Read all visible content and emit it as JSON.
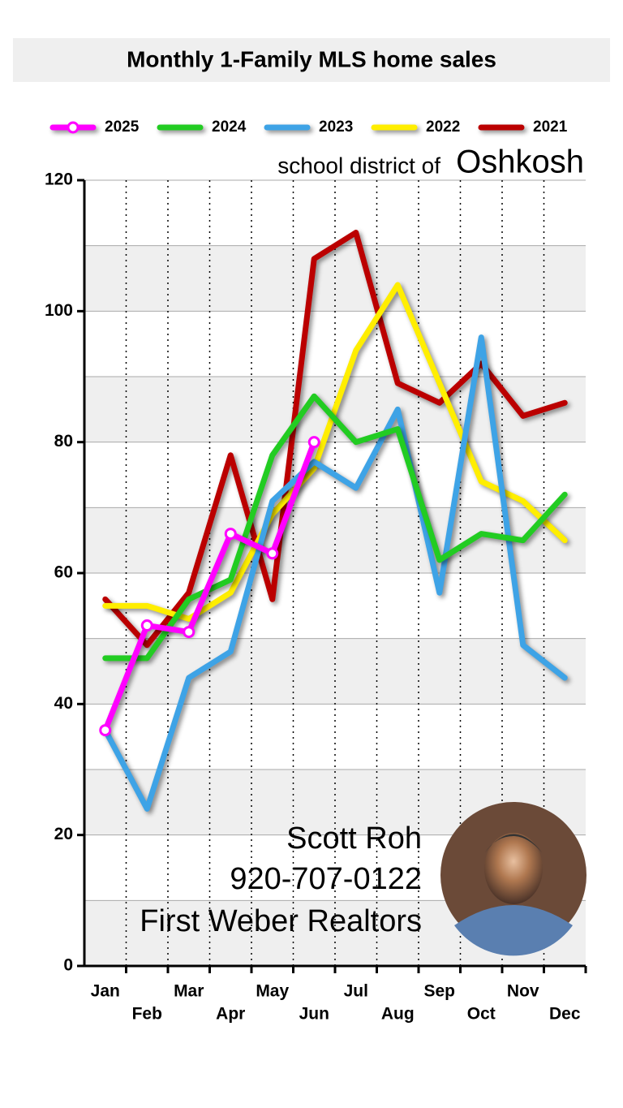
{
  "chart_data": {
    "type": "line",
    "title": "Monthly 1-Family MLS home sales",
    "annotations": [
      "school district of",
      "Oshkosh"
    ],
    "contact": [
      "Scott Roh",
      "920-707-0122",
      "First Weber Realtors"
    ],
    "categories": [
      "Jan",
      "Feb",
      "Mar",
      "Apr",
      "May",
      "Jun",
      "Jul",
      "Aug",
      "Sep",
      "Oct",
      "Nov",
      "Dec"
    ],
    "ylim": [
      0,
      120
    ],
    "yticks": [
      0,
      20,
      40,
      60,
      80,
      100,
      120
    ],
    "grid": true,
    "legend": "top",
    "series": [
      {
        "name": "2025",
        "color": "#ff00ff",
        "markers": true,
        "values": [
          36,
          52,
          51,
          66,
          63,
          80,
          null,
          null,
          null,
          null,
          null,
          null
        ]
      },
      {
        "name": "2024",
        "color": "#22cc22",
        "values": [
          47,
          47,
          56,
          59,
          78,
          87,
          80,
          82,
          62,
          66,
          65,
          72
        ]
      },
      {
        "name": "2023",
        "color": "#3ea3e6",
        "values": [
          36,
          24,
          44,
          48,
          71,
          77,
          73,
          85,
          57,
          96,
          49,
          44
        ]
      },
      {
        "name": "2022",
        "color": "#ffee00",
        "values": [
          55,
          55,
          53,
          57,
          69,
          76,
          94,
          104,
          89,
          74,
          71,
          65
        ]
      },
      {
        "name": "2021",
        "color": "#bb0000",
        "values": [
          56,
          49,
          57,
          78,
          56,
          108,
          112,
          89,
          86,
          92,
          84,
          86
        ]
      }
    ]
  }
}
